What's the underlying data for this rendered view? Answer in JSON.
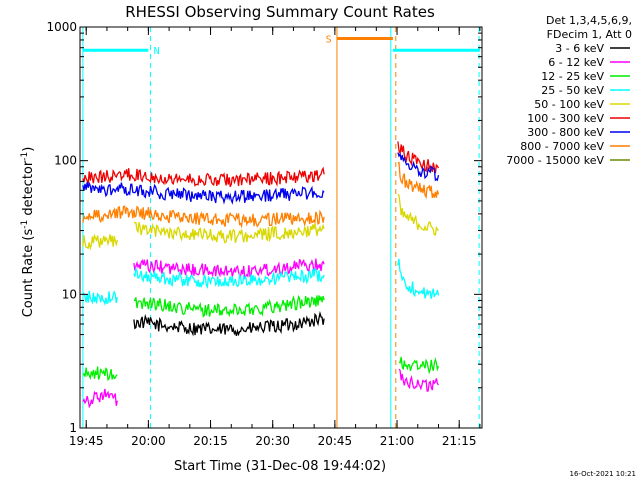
{
  "chart_data": {
    "type": "line",
    "title": "RHESSI Observing Summary Count Rates",
    "xlabel": "Start Time (31-Dec-08 19:44:02)",
    "ylabel_main": "Count Rate (s",
    "ylabel_sup1": "-1",
    "ylabel_mid": " detector",
    "ylabel_sup2": "-1",
    "ylabel_end": ")",
    "x_unit": "minutes since 19:44:02",
    "xlim": [
      -0.5,
      96.5
    ],
    "ylim": [
      1,
      1000
    ],
    "yscale": "log",
    "x_ticks": [
      {
        "value": 1,
        "label": "19:45"
      },
      {
        "value": 16,
        "label": "20:00"
      },
      {
        "value": 31,
        "label": "20:15"
      },
      {
        "value": 46,
        "label": "20:30"
      },
      {
        "value": 61,
        "label": "20:45"
      },
      {
        "value": 76,
        "label": "21:00"
      },
      {
        "value": 91,
        "label": "21:15"
      }
    ],
    "y_ticks": [
      {
        "value": 1,
        "label": "1"
      },
      {
        "value": 10,
        "label": "10"
      },
      {
        "value": 100,
        "label": "100"
      },
      {
        "value": 1000,
        "label": "1000"
      }
    ],
    "legend_header": [
      "Det 1,3,4,5,6,9,",
      "FDecim 1, Att 0"
    ],
    "legend_position": "right",
    "series": [
      {
        "name": "3 - 6 keV",
        "color": "#000000",
        "segments": [
          {
            "x": [
              12.5,
              14,
              20,
              26,
              32,
              40,
              48,
              54,
              58.4
            ],
            "y": [
              6.0,
              6.2,
              5.8,
              5.6,
              5.4,
              5.5,
              5.8,
              6.2,
              6.6
            ]
          }
        ]
      },
      {
        "name": "6 - 12 keV",
        "color": "#ff00ff",
        "segments": [
          {
            "x": [
              0.2,
              2,
              5,
              7,
              8.5
            ],
            "y": [
              1.7,
              1.6,
              1.8,
              1.7,
              1.6
            ]
          },
          {
            "x": [
              12.5,
              16,
              22,
              28,
              34,
              40,
              46,
              52,
              58.4
            ],
            "y": [
              16.0,
              16.3,
              15.6,
              15.2,
              14.8,
              15.0,
              15.6,
              16.3,
              16.8
            ]
          },
          {
            "x": [
              76.5,
              78,
              80,
              82,
              86
            ],
            "y": [
              2.5,
              2.3,
              2.2,
              2.1,
              2.1
            ]
          }
        ]
      },
      {
        "name": "12 - 25 keV",
        "color": "#00ee00",
        "segments": [
          {
            "x": [
              0.2,
              3,
              6,
              8.5
            ],
            "y": [
              2.5,
              2.6,
              2.5,
              2.5
            ]
          },
          {
            "x": [
              12.5,
              16,
              22,
              28,
              34,
              40,
              46,
              52,
              58.4
            ],
            "y": [
              8.5,
              8.7,
              8.1,
              7.7,
              7.5,
              7.7,
              8.1,
              8.6,
              9.1
            ]
          },
          {
            "x": [
              76.5,
              78,
              81,
              84,
              86
            ],
            "y": [
              3.1,
              3.0,
              2.9,
              2.9,
              2.9
            ]
          }
        ]
      },
      {
        "name": "25 - 50 keV",
        "color": "#00ffff",
        "segments": [
          {
            "x": [
              0.2,
              4,
              8.5
            ],
            "y": [
              9.6,
              9.3,
              9.5
            ]
          },
          {
            "x": [
              12.5,
              16,
              22,
              28,
              34,
              40,
              46,
              52,
              58.4
            ],
            "y": [
              14.0,
              13.8,
              13.0,
              12.6,
              12.4,
              12.6,
              13.1,
              13.6,
              14.0
            ]
          },
          {
            "x": [
              76.2,
              77.5,
              80,
              83,
              86
            ],
            "y": [
              18.0,
              12.5,
              11.0,
              10.2,
              9.8
            ]
          }
        ]
      },
      {
        "name": "50 - 100 keV",
        "color": "#d8d800",
        "segments": [
          {
            "x": [
              0.2,
              4,
              8.5
            ],
            "y": [
              25.0,
              24.5,
              25.5
            ]
          },
          {
            "x": [
              12.5,
              16,
              22,
              28,
              34,
              40,
              46,
              52,
              58.4
            ],
            "y": [
              32.0,
              30.0,
              29.0,
              28.0,
              27.0,
              27.5,
              28.5,
              29.5,
              31.0
            ]
          },
          {
            "x": [
              76.2,
              77,
              80,
              83,
              86
            ],
            "y": [
              55.0,
              40.0,
              35.0,
              32.0,
              30.0
            ]
          }
        ]
      },
      {
        "name": "100 - 300 keV",
        "color": "#ee0000",
        "segments": [
          {
            "x": [
              0.2,
              4,
              8.5,
              10,
              16,
              22,
              28,
              34,
              40,
              46,
              52,
              58.4
            ],
            "y": [
              75.0,
              75.5,
              77.0,
              79.0,
              77.0,
              74.0,
              72.0,
              71.0,
              72.0,
              74.0,
              76.0,
              79.0
            ]
          },
          {
            "x": [
              76.2,
              77,
              79,
              82,
              86
            ],
            "y": [
              140.0,
              120.0,
              105.0,
              95.0,
              88.0
            ]
          }
        ]
      },
      {
        "name": "300 - 800 keV",
        "color": "#0000ee",
        "segments": [
          {
            "x": [
              0.2,
              4,
              8.5,
              10,
              16,
              22,
              28,
              34,
              40,
              46,
              52,
              58.4
            ],
            "y": [
              62.0,
              61.0,
              60.0,
              62.0,
              59.0,
              56.0,
              54.0,
              53.0,
              54.0,
              55.0,
              56.5,
              58.0
            ]
          },
          {
            "x": [
              76.2,
              77,
              79,
              82,
              86
            ],
            "y": [
              120.0,
              105.0,
              92.0,
              84.0,
              78.0
            ]
          }
        ]
      },
      {
        "name": "800 - 7000 keV",
        "color": "#ff7f00",
        "segments": [
          {
            "x": [
              0.2,
              4,
              8.5,
              10,
              16,
              22,
              28,
              34,
              40,
              46,
              52,
              58.4
            ],
            "y": [
              38.0,
              39.0,
              40.0,
              42.0,
              40.0,
              38.0,
              37.0,
              36.0,
              36.0,
              36.5,
              37.0,
              38.0
            ]
          },
          {
            "x": [
              76.2,
              77,
              79,
              82,
              86
            ],
            "y": [
              95.0,
              75.0,
              66.0,
              60.0,
              56.0
            ]
          }
        ]
      },
      {
        "name": "7000 - 15000 keV",
        "color": "#6a8a00",
        "segments": []
      }
    ],
    "state_bars": [
      {
        "label": "",
        "color": "#00ffff",
        "x0": 0.2,
        "x1": 16,
        "y": 670
      },
      {
        "label": "N",
        "color": "#00ffff",
        "x0": null,
        "x1": null,
        "y": 670,
        "label_x": 18
      },
      {
        "label": "S",
        "color": "#ff7f00",
        "x0": 61.5,
        "x1": 75,
        "y": 820,
        "label_x": 59.5
      },
      {
        "label": "",
        "color": "#00ffff",
        "x0": 75,
        "x1": 96,
        "y": 670
      }
    ],
    "vertical_lines": [
      {
        "x": 0.2,
        "color": "#00ffff",
        "style": "solid"
      },
      {
        "x": 16.5,
        "color": "#00ffff",
        "style": "dashed"
      },
      {
        "x": 61.5,
        "color": "#ff7f00",
        "style": "solid"
      },
      {
        "x": 74.5,
        "color": "#00ffff",
        "style": "solid"
      },
      {
        "x": 75.7,
        "color": "#ff7f00",
        "style": "dashed"
      },
      {
        "x": 95.8,
        "color": "#00ffff",
        "style": "dashed"
      }
    ],
    "stamp": "16-Oct-2021 10:21"
  }
}
